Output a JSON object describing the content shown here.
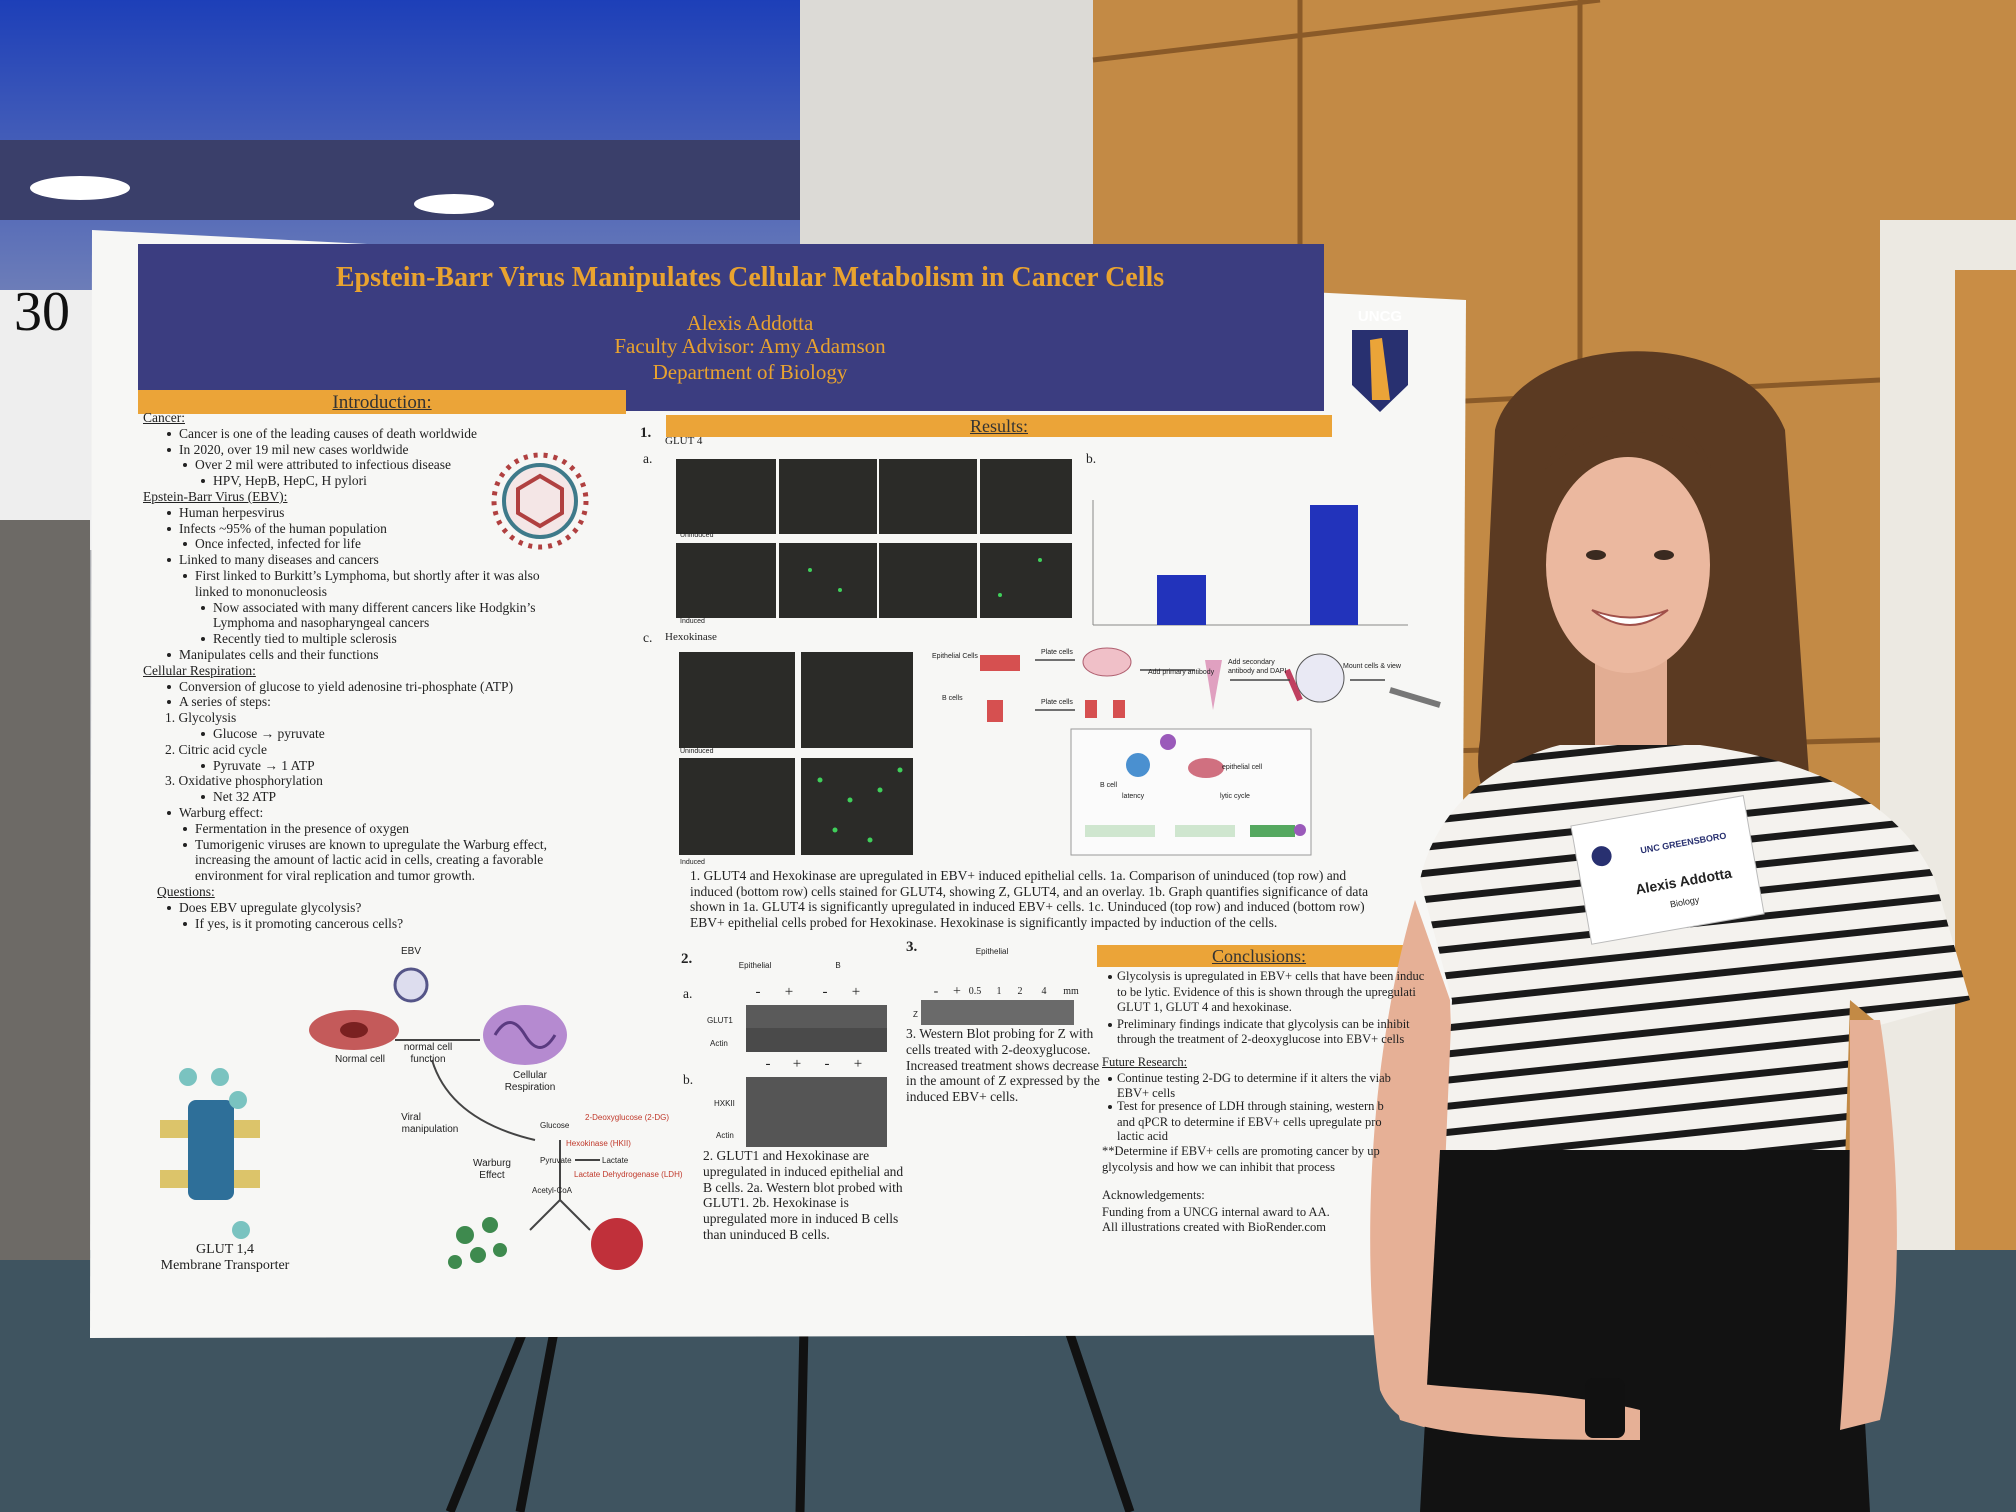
{
  "booth_number": "30",
  "poster": {
    "title": "Epstein-Barr Virus Manipulates Cellular Metabolism in Cancer Cells",
    "author": "Alexis Addotta",
    "advisor": "Faculty Advisor: Amy Adamson",
    "department": "Department of Biology",
    "logo": "UNCG",
    "introduction": {
      "heading": "Introduction:",
      "lines": [
        "Cancer:",
        "Cancer is one of the leading causes of death worldwide",
        "In 2020, over 19 mil new cases worldwide",
        "Over 2 mil were attributed to infectious disease",
        "HPV, HepB, HepC, H pylori",
        "Epstein-Barr Virus (EBV):",
        "Human herpesvirus",
        "Infects ~95% of the human population",
        "Once infected, infected for life",
        "Linked to many diseases and cancers",
        "First linked to Burkitt’s Lymphoma, but shortly after it was also",
        "linked to mononucleosis",
        "Now associated with many different cancers like Hodgkin’s",
        "Lymphoma and  nasopharyngeal cancers",
        "Recently tied to multiple sclerosis",
        "Manipulates cells and their functions",
        "Cellular Respiration:",
        "Conversion of glucose to yield adenosine tri-phosphate (ATP)",
        "A series of steps:",
        "1.   Glycolysis",
        "Glucose → pyruvate",
        "2.   Citric acid cycle",
        "Pyruvate → 1 ATP",
        "3.   Oxidative phosphorylation",
        "Net 32 ATP",
        "Warburg effect:",
        "Fermentation in the presence of oxygen",
        "Tumorigenic viruses are known to upregulate the Warburg effect,",
        "increasing the amount of lactic acid in cells, creating a favorable",
        "environment for viral replication and tumor growth.",
        "Questions:",
        "Does EBV upregulate glycolysis?",
        "If yes, is it promoting cancerous cells?"
      ]
    },
    "diagram": {
      "ebv": "EBV",
      "normal_cell": "Normal cell",
      "normal_function": [
        "normal cell",
        "function"
      ],
      "respiration": [
        "Cellular",
        "Respiration"
      ],
      "viral": [
        "Viral",
        "manipulation"
      ],
      "warburg": [
        "Warburg",
        "Effect"
      ],
      "glucose": "Glucose",
      "deoxyglucose": "2-Deoxyglucose (2-DG)",
      "hexokinase": "Hexokinase (HKII)",
      "pyruvate": "Pyruvate",
      "lactate": "Lactate",
      "ldh": "Lactate Dehydrogenase (LDH)",
      "acetyl": "Acetyl-CoA",
      "transporter": [
        "GLUT 1,4",
        "Membrane Transporter"
      ]
    },
    "results": {
      "heading": "Results:",
      "fig1": {
        "number": "1.",
        "a": "a.",
        "glut": "GLUT 4",
        "uninduced": "Uninduced",
        "induced": "Induced",
        "b": "b.",
        "c": "c.",
        "hexokinase": "Hexokinase",
        "uninduced2": "Uninduced",
        "induced2": "Induced",
        "workflow": [
          "Epithelial Cells",
          "B cells",
          "Plate cells",
          "Plate cells",
          "Add primary antibody",
          "Add secondary antibody and DAPI",
          "Mount cells & view"
        ],
        "cycle": [
          "B cell",
          "epithelial cell",
          "latency",
          "lytic cycle"
        ],
        "caption": "1. GLUT4 and Hexokinase are upregulated in EBV+ induced epithelial cells. 1a. Comparison of uninduced (top row) and induced (bottom row) cells stained for GLUT4, showing Z, GLUT4, and an overlay. 1b. Graph quantifies significance of data shown in 1a. GLUT4 is significantly upregulated in induced EBV+ cells. 1c. Uninduced (top row) and induced (bottom row) EBV+ epithelial cells probed for Hexokinase. Hexokinase is significantly impacted by induction of the cells."
      },
      "fig2": {
        "number": "2.",
        "a": "a.",
        "groups": [
          "Epithelial",
          "B"
        ],
        "signs_a": [
          "-",
          "+",
          "-",
          "+"
        ],
        "glut1": "GLUT1",
        "actin_a": "Actin",
        "b": "b.",
        "signs_b": [
          "-",
          "+",
          "-",
          "+"
        ],
        "hxkii": "HXKII",
        "actin_b": "Actin",
        "caption": "2. GLUT1 and Hexokinase are upregulated in induced epithelial and B cells.  2a. Western blot probed with GLUT1.  2b. Hexokinase is upregulated more in induced B cells than uninduced B cells."
      },
      "fig3": {
        "number": "3.",
        "group": "Epithelial",
        "lanes": [
          "-",
          "+",
          "0.5",
          "1",
          "2",
          "4",
          "mm"
        ],
        "z": "Z",
        "caption": "3. Western Blot probing for Z with cells treated with 2-deoxyglucose. Increased treatment shows decrease in the amount of Z expressed by the induced EBV+ cells."
      }
    },
    "conclusions": {
      "heading": "Conclusions:",
      "lines": [
        "Glycolysis is upregulated in EBV+ cells that have been induc",
        "to be lytic. Evidence of this is shown through the upregulati",
        "GLUT 1, GLUT 4 and hexokinase.",
        "Preliminary findings indicate that glycolysis can be inhibit",
        "through the treatment of 2-deoxyglucose into EBV+ cells",
        "Future Research:",
        "Continue testing 2-DG to determine if it alters the viab",
        "EBV+ cells",
        "Test for presence of LDH through staining, western b",
        "and qPCR to determine if EBV+ cells upregulate pro",
        "lactic acid",
        "**Determine if EBV+ cells are promoting cancer by up",
        "glycolysis and how we can inhibit that process",
        "Acknowledgements:",
        "Funding from a UNCG internal award to AA.",
        "All illustrations created with BioRender.com"
      ]
    }
  },
  "badge": {
    "school": "UNC GREENSBORO",
    "name": "Alexis Addotta",
    "department": "Biology"
  }
}
